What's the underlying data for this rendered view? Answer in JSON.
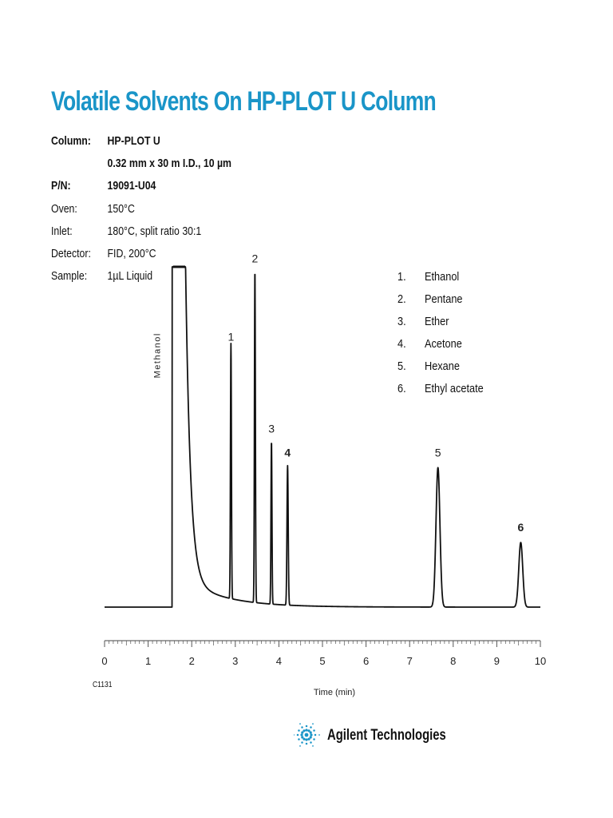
{
  "title": "Volatile Solvents On HP-PLOT U Column",
  "params": [
    {
      "label": "Column:",
      "value": "HP-PLOT U",
      "bold": true
    },
    {
      "label": "",
      "value": "0.32 mm x 30 m I.D., 10 µm",
      "bold": true
    },
    {
      "label": "P/N:",
      "value": "19091-U04",
      "bold": true
    },
    {
      "label": "Oven:",
      "value": "150°C",
      "bold": false
    },
    {
      "label": "Inlet:",
      "value": "180°C, split ratio 30:1",
      "bold": false
    },
    {
      "label": "Detector:",
      "value": "FID, 200°C",
      "bold": false
    },
    {
      "label": "Sample:",
      "value": "1µL Liquid",
      "bold": false
    }
  ],
  "legend": [
    {
      "num": "1.",
      "name": "Ethanol"
    },
    {
      "num": "2.",
      "name": "Pentane"
    },
    {
      "num": "3.",
      "name": "Ether"
    },
    {
      "num": "4.",
      "name": "Acetone"
    },
    {
      "num": "5.",
      "name": "Hexane"
    },
    {
      "num": "6.",
      "name": "Ethyl acetate"
    }
  ],
  "figure_code": "C1131",
  "logo": {
    "text": "Agilent Technologies",
    "icon": "agilent-spark-icon",
    "color": "#1a95c8"
  },
  "chart_data": {
    "type": "line",
    "title": "",
    "xlabel": "Time (min)",
    "ylabel": "",
    "xlim": [
      0,
      10
    ],
    "ylim": [
      0,
      100
    ],
    "xticks": [
      "0",
      "1",
      "2",
      "3",
      "4",
      "5",
      "6",
      "7",
      "8",
      "9",
      "10"
    ],
    "baseline": 0,
    "solvent_peak": {
      "label": "Methanol",
      "start": 1.55,
      "end": 1.85,
      "height": 100,
      "offscale": true
    },
    "peaks": [
      {
        "id": "1",
        "time": 2.9,
        "height": 75,
        "bold": false
      },
      {
        "id": "2",
        "time": 3.45,
        "height": 98,
        "bold": false
      },
      {
        "id": "3",
        "time": 3.83,
        "height": 48,
        "bold": false
      },
      {
        "id": "4",
        "time": 4.2,
        "height": 41,
        "bold": true
      },
      {
        "id": "5",
        "time": 7.65,
        "height": 41,
        "bold": false
      },
      {
        "id": "6",
        "time": 9.55,
        "height": 19,
        "bold": true
      }
    ]
  }
}
